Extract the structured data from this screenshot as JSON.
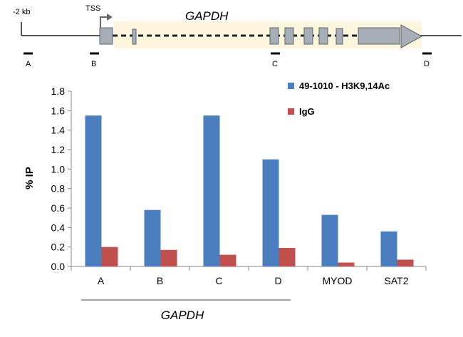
{
  "gene_diagram": {
    "upstream_label": "-2 kb",
    "tss_label": "TSS",
    "gene_name": "GAPDH",
    "amplicons": [
      "A",
      "B",
      "C",
      "D"
    ],
    "colors": {
      "exon_fill": "#a6aeb8",
      "exon_stroke": "#5e6670",
      "gene_body": "#fdf5dc",
      "line": "#555555"
    }
  },
  "chart_data": {
    "type": "bar",
    "categories": [
      "A",
      "B",
      "C",
      "D",
      "MYOD",
      "SAT2"
    ],
    "series": [
      {
        "name": "49-1010 - H3K9,14Ac",
        "color": "#4a7ebf",
        "values": [
          1.55,
          0.58,
          1.55,
          1.1,
          0.53,
          0.36
        ]
      },
      {
        "name": "IgG",
        "color": "#c0504d",
        "values": [
          0.2,
          0.17,
          0.12,
          0.19,
          0.04,
          0.07
        ]
      }
    ],
    "ylabel": "% IP",
    "ylim": [
      0,
      1.8
    ],
    "yticks": [
      "0.0",
      "0.2",
      "0.4",
      "0.6",
      "0.8",
      "1.0",
      "1.2",
      "1.4",
      "1.6",
      "1.8"
    ],
    "group_label": "GAPDH",
    "grid": false,
    "legend_position": "top-right"
  }
}
